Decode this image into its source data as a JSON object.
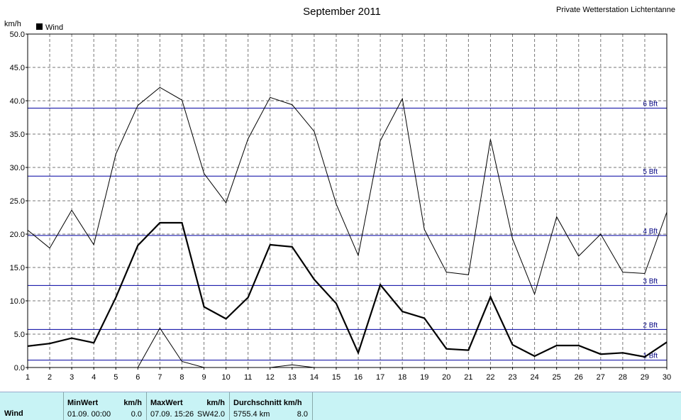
{
  "header": {
    "title": "September 2011",
    "station": "Private Wetterstation Lichtentanne",
    "unit": "km/h",
    "legend_label": "Wind"
  },
  "chart_data": {
    "type": "line",
    "title": "September 2011",
    "ylabel": "km/h",
    "xlabel": "",
    "xlim": [
      1,
      30
    ],
    "ylim": [
      0,
      50
    ],
    "x_ticks": [
      1,
      2,
      3,
      4,
      5,
      6,
      7,
      8,
      9,
      10,
      11,
      12,
      13,
      14,
      15,
      16,
      17,
      18,
      19,
      20,
      21,
      22,
      23,
      24,
      25,
      26,
      27,
      28,
      29,
      30
    ],
    "y_ticks": [
      "0.0",
      "5.0",
      "10.0",
      "15.0",
      "20.0",
      "25.0",
      "30.0",
      "35.0",
      "40.0",
      "45.0",
      "50.0"
    ],
    "grid": true,
    "legend": "top-left",
    "x": [
      1,
      2,
      3,
      4,
      5,
      6,
      7,
      8,
      9,
      10,
      11,
      12,
      13,
      14,
      15,
      16,
      17,
      18,
      19,
      20,
      21,
      22,
      23,
      24,
      25,
      26,
      27,
      28,
      29,
      30
    ],
    "series": [
      {
        "name": "Wind",
        "role": "average",
        "color": "#000000",
        "values": [
          3.2,
          3.6,
          4.4,
          3.7,
          10.5,
          18.3,
          21.7,
          21.7,
          9.1,
          7.3,
          10.5,
          18.4,
          18.1,
          13.2,
          9.6,
          2.2,
          12.4,
          8.4,
          7.4,
          2.8,
          2.6,
          10.6,
          3.4,
          1.7,
          3.3,
          3.3,
          2.0,
          2.2,
          1.6,
          3.8
        ]
      },
      {
        "role": "max",
        "color": "#000000",
        "values": [
          20.6,
          17.9,
          23.6,
          18.4,
          32.0,
          39.3,
          42.0,
          40.1,
          29.1,
          24.7,
          34.3,
          40.5,
          39.4,
          35.4,
          24.5,
          16.8,
          34.0,
          40.3,
          20.7,
          14.3,
          13.9,
          34.2,
          19.3,
          11.0,
          22.6,
          16.7,
          20.0,
          14.3,
          14.1,
          23.3
        ]
      },
      {
        "role": "min",
        "color": "#000000",
        "values": [
          0.0,
          0.0,
          0.0,
          0.0,
          0.0,
          0.0,
          5.9,
          0.9,
          0.0,
          0.0,
          0.0,
          0.0,
          0.4,
          0.0,
          0.0,
          0.0,
          0.0,
          0.0,
          0.0,
          0.0,
          0.0,
          0.0,
          0.0,
          0.0,
          0.0,
          0.0,
          0.0,
          0.0,
          0.0,
          0.0
        ]
      }
    ],
    "reference_lines": [
      {
        "label": "1 Bft",
        "value": 1.1
      },
      {
        "label": "2 Bft",
        "value": 5.7
      },
      {
        "label": "3 Bft",
        "value": 12.3
      },
      {
        "label": "4 Bft",
        "value": 19.8
      },
      {
        "label": "5 Bft",
        "value": 28.7
      },
      {
        "label": "6 Bft",
        "value": 38.9
      }
    ],
    "reference_color": "#0000a0"
  },
  "stats": {
    "row_label": "Wind",
    "min_header": "MinWert",
    "min_unit": "km/h",
    "min_date": "01.09.  00:00",
    "min_value": "0.0",
    "max_header": "MaxWert",
    "max_unit": "km/h",
    "max_date": "07.09.  15:26",
    "max_dir": "SW",
    "max_value": "42.0",
    "avg_header": "Durchschnitt km/h",
    "avg_distance": "5755.4 km",
    "avg_value": "8.0"
  }
}
